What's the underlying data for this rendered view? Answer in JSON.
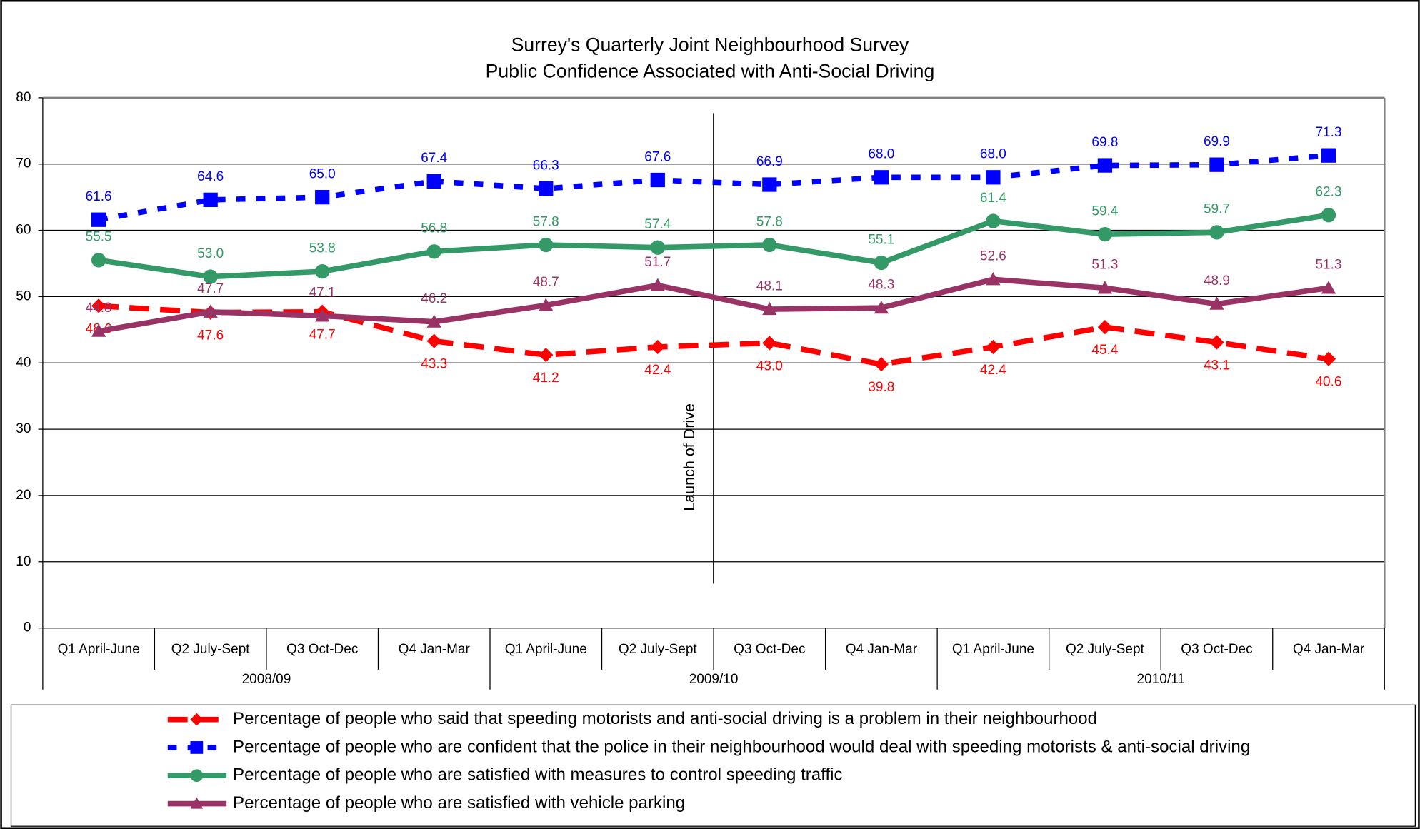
{
  "chart_data": {
    "type": "line",
    "title": "Surrey's Quarterly Joint Neighbourhood Survey",
    "subtitle": "Public Confidence Associated with Anti-Social Driving",
    "categories": [
      "Q1 April-June",
      "Q2 July-Sept",
      "Q3 Oct-Dec",
      "Q4 Jan-Mar",
      "Q1 April-June",
      "Q2 July-Sept",
      "Q3 Oct-Dec",
      "Q4 Jan-Mar",
      "Q1 April-June",
      "Q2 July-Sept",
      "Q3 Oct-Dec",
      "Q4 Jan-Mar"
    ],
    "category_groups": [
      "2008/09",
      "2009/10",
      "2010/11"
    ],
    "annotation": "Launch of Drive",
    "ylim": [
      0,
      80
    ],
    "yticks": [
      0,
      10,
      20,
      30,
      40,
      50,
      60,
      70,
      80
    ],
    "grid": true,
    "series": [
      {
        "name": "Percentage of people who said that speeding motorists and anti-social driving is a problem in their neighbourhood",
        "color": "#ff0000",
        "marker": "diamond",
        "dash": "long",
        "values": [
          48.6,
          47.6,
          47.7,
          43.3,
          41.2,
          42.4,
          43.0,
          39.8,
          42.4,
          45.4,
          43.1,
          40.6
        ],
        "value_labels": [
          "48.6",
          "47.6",
          "47.7",
          "43.3",
          "41.2",
          "42.4",
          "43.0",
          "39.8",
          "42.4",
          "45.4",
          "43.1",
          "40.6"
        ]
      },
      {
        "name": "Percentage of people who are confident that the police in their neighbourhood would deal with speeding motorists & anti-social driving",
        "color": "#0000ff",
        "marker": "square",
        "dash": "short",
        "values": [
          61.6,
          64.6,
          65.0,
          67.4,
          66.3,
          67.6,
          66.9,
          68.0,
          68.0,
          69.8,
          69.9,
          71.3
        ],
        "value_labels": [
          "61.6",
          "64.6",
          "65.0",
          "67.4",
          "66.3",
          "67.6",
          "66.9",
          "68.0",
          "68.0",
          "69.8",
          "69.9",
          "71.3"
        ]
      },
      {
        "name": "Percentage of people who are satisfied with measures to control speeding traffic",
        "color": "#339966",
        "marker": "circle",
        "dash": "solid",
        "values": [
          55.5,
          53.0,
          53.8,
          56.8,
          57.8,
          57.4,
          57.8,
          55.1,
          61.4,
          59.4,
          59.7,
          62.3
        ],
        "value_labels": [
          "55.5",
          "53.0",
          "53.8",
          "56.8",
          "57.8",
          "57.4",
          "57.8",
          "55.1",
          "61.4",
          "59.4",
          "59.7",
          "62.3"
        ]
      },
      {
        "name": "Percentage of people who are satisfied with vehicle parking",
        "color": "#993366",
        "marker": "triangle",
        "dash": "solid",
        "values": [
          44.8,
          47.7,
          47.1,
          46.2,
          48.7,
          51.7,
          48.1,
          48.3,
          52.6,
          51.3,
          48.9,
          51.3
        ],
        "value_labels": [
          "44.8",
          "47.7",
          "47.1",
          "46.2",
          "48.7",
          "51.7",
          "48.1",
          "48.3",
          "52.6",
          "51.3",
          "48.9",
          "51.3"
        ]
      }
    ]
  }
}
